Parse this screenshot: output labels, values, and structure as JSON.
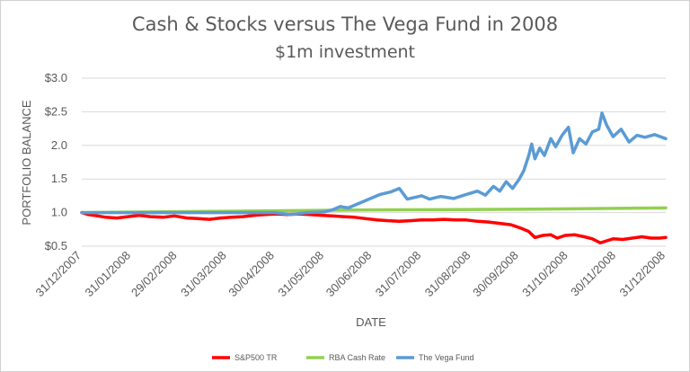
{
  "chart_data": {
    "type": "line",
    "title": "Cash & Stocks versus The Vega Fund in 2008",
    "subtitle": "$1m investment",
    "xlabel": "DATE",
    "ylabel": "PORTFOLIO BALANCE",
    "ylim": [
      0.5,
      3.0
    ],
    "y_ticks": [
      "$0.5",
      "1.0",
      "1.5",
      "2.0",
      "$2.5",
      "$3.0"
    ],
    "y_tick_values": [
      0.5,
      1.0,
      1.5,
      2.0,
      2.5,
      3.0
    ],
    "x_range": [
      "2007-12-31",
      "2008-12-31"
    ],
    "x_ticks": [
      "31/12/2007",
      "31/01/2008",
      "29/02/2008",
      "31/03/2008",
      "30/04/2008",
      "31/05/2008",
      "30/06/2008",
      "31/07/2008",
      "31/08/2008",
      "30/09/2008",
      "31/10/2008",
      "30/11/2008",
      "31/12/2008"
    ],
    "x_tick_dates": [
      "2007-12-31",
      "2008-01-31",
      "2008-02-29",
      "2008-03-31",
      "2008-04-30",
      "2008-05-31",
      "2008-06-30",
      "2008-07-31",
      "2008-08-31",
      "2008-09-30",
      "2008-10-31",
      "2008-11-30",
      "2008-12-31"
    ],
    "grid": true,
    "legend_position": "bottom",
    "series": [
      {
        "name": "S&P500 TR",
        "color": "#ff0000",
        "points": [
          [
            "2007-12-31",
            1.0
          ],
          [
            "2008-01-04",
            0.97
          ],
          [
            "2008-01-10",
            0.95
          ],
          [
            "2008-01-15",
            0.93
          ],
          [
            "2008-01-22",
            0.92
          ],
          [
            "2008-01-29",
            0.94
          ],
          [
            "2008-02-05",
            0.96
          ],
          [
            "2008-02-12",
            0.94
          ],
          [
            "2008-02-20",
            0.93
          ],
          [
            "2008-02-27",
            0.95
          ],
          [
            "2008-03-06",
            0.92
          ],
          [
            "2008-03-13",
            0.91
          ],
          [
            "2008-03-20",
            0.9
          ],
          [
            "2008-03-27",
            0.92
          ],
          [
            "2008-04-03",
            0.93
          ],
          [
            "2008-04-10",
            0.94
          ],
          [
            "2008-04-17",
            0.96
          ],
          [
            "2008-04-24",
            0.97
          ],
          [
            "2008-05-01",
            0.98
          ],
          [
            "2008-05-08",
            0.97
          ],
          [
            "2008-05-15",
            0.98
          ],
          [
            "2008-05-22",
            0.97
          ],
          [
            "2008-05-29",
            0.96
          ],
          [
            "2008-06-05",
            0.95
          ],
          [
            "2008-06-12",
            0.94
          ],
          [
            "2008-06-19",
            0.93
          ],
          [
            "2008-06-26",
            0.91
          ],
          [
            "2008-07-03",
            0.89
          ],
          [
            "2008-07-10",
            0.88
          ],
          [
            "2008-07-17",
            0.87
          ],
          [
            "2008-07-24",
            0.88
          ],
          [
            "2008-07-31",
            0.89
          ],
          [
            "2008-08-07",
            0.89
          ],
          [
            "2008-08-14",
            0.9
          ],
          [
            "2008-08-21",
            0.89
          ],
          [
            "2008-08-28",
            0.89
          ],
          [
            "2008-09-04",
            0.87
          ],
          [
            "2008-09-11",
            0.86
          ],
          [
            "2008-09-18",
            0.84
          ],
          [
            "2008-09-25",
            0.82
          ],
          [
            "2008-10-01",
            0.77
          ],
          [
            "2008-10-06",
            0.72
          ],
          [
            "2008-10-10",
            0.63
          ],
          [
            "2008-10-15",
            0.66
          ],
          [
            "2008-10-20",
            0.67
          ],
          [
            "2008-10-24",
            0.62
          ],
          [
            "2008-10-29",
            0.66
          ],
          [
            "2008-11-04",
            0.67
          ],
          [
            "2008-11-10",
            0.64
          ],
          [
            "2008-11-15",
            0.61
          ],
          [
            "2008-11-20",
            0.55
          ],
          [
            "2008-11-24",
            0.58
          ],
          [
            "2008-11-28",
            0.61
          ],
          [
            "2008-12-04",
            0.6
          ],
          [
            "2008-12-10",
            0.62
          ],
          [
            "2008-12-16",
            0.64
          ],
          [
            "2008-12-22",
            0.62
          ],
          [
            "2008-12-27",
            0.62
          ],
          [
            "2008-12-31",
            0.63
          ]
        ]
      },
      {
        "name": "RBA Cash Rate",
        "color": "#92d050",
        "points": [
          [
            "2007-12-31",
            1.0
          ],
          [
            "2008-03-31",
            1.02
          ],
          [
            "2008-06-30",
            1.04
          ],
          [
            "2008-09-30",
            1.05
          ],
          [
            "2008-12-31",
            1.07
          ]
        ]
      },
      {
        "name": "The Vega Fund",
        "color": "#5b9bd5",
        "points": [
          [
            "2007-12-31",
            1.0
          ],
          [
            "2008-01-31",
            1.0
          ],
          [
            "2008-02-29",
            1.0
          ],
          [
            "2008-03-31",
            1.0
          ],
          [
            "2008-04-30",
            1.0
          ],
          [
            "2008-05-10",
            0.97
          ],
          [
            "2008-05-20",
            1.0
          ],
          [
            "2008-05-31",
            1.01
          ],
          [
            "2008-06-05",
            1.04
          ],
          [
            "2008-06-10",
            1.09
          ],
          [
            "2008-06-15",
            1.07
          ],
          [
            "2008-06-20",
            1.12
          ],
          [
            "2008-06-25",
            1.17
          ],
          [
            "2008-06-30",
            1.22
          ],
          [
            "2008-07-05",
            1.27
          ],
          [
            "2008-07-12",
            1.31
          ],
          [
            "2008-07-17",
            1.36
          ],
          [
            "2008-07-22",
            1.2
          ],
          [
            "2008-07-31",
            1.25
          ],
          [
            "2008-08-05",
            1.2
          ],
          [
            "2008-08-12",
            1.24
          ],
          [
            "2008-08-20",
            1.21
          ],
          [
            "2008-08-28",
            1.27
          ],
          [
            "2008-09-04",
            1.32
          ],
          [
            "2008-09-09",
            1.26
          ],
          [
            "2008-09-14",
            1.39
          ],
          [
            "2008-09-18",
            1.32
          ],
          [
            "2008-09-22",
            1.46
          ],
          [
            "2008-09-26",
            1.36
          ],
          [
            "2008-09-30",
            1.49
          ],
          [
            "2008-10-03",
            1.62
          ],
          [
            "2008-10-06",
            1.84
          ],
          [
            "2008-10-08",
            2.02
          ],
          [
            "2008-10-10",
            1.8
          ],
          [
            "2008-10-13",
            1.96
          ],
          [
            "2008-10-16",
            1.85
          ],
          [
            "2008-10-20",
            2.1
          ],
          [
            "2008-10-23",
            1.98
          ],
          [
            "2008-10-27",
            2.15
          ],
          [
            "2008-10-31",
            2.27
          ],
          [
            "2008-11-03",
            1.89
          ],
          [
            "2008-11-07",
            2.1
          ],
          [
            "2008-11-11",
            2.02
          ],
          [
            "2008-11-15",
            2.2
          ],
          [
            "2008-11-19",
            2.24
          ],
          [
            "2008-11-21",
            2.48
          ],
          [
            "2008-11-24",
            2.3
          ],
          [
            "2008-11-28",
            2.13
          ],
          [
            "2008-12-03",
            2.24
          ],
          [
            "2008-12-08",
            2.05
          ],
          [
            "2008-12-13",
            2.15
          ],
          [
            "2008-12-18",
            2.12
          ],
          [
            "2008-12-24",
            2.16
          ],
          [
            "2008-12-31",
            2.1
          ]
        ]
      }
    ]
  }
}
